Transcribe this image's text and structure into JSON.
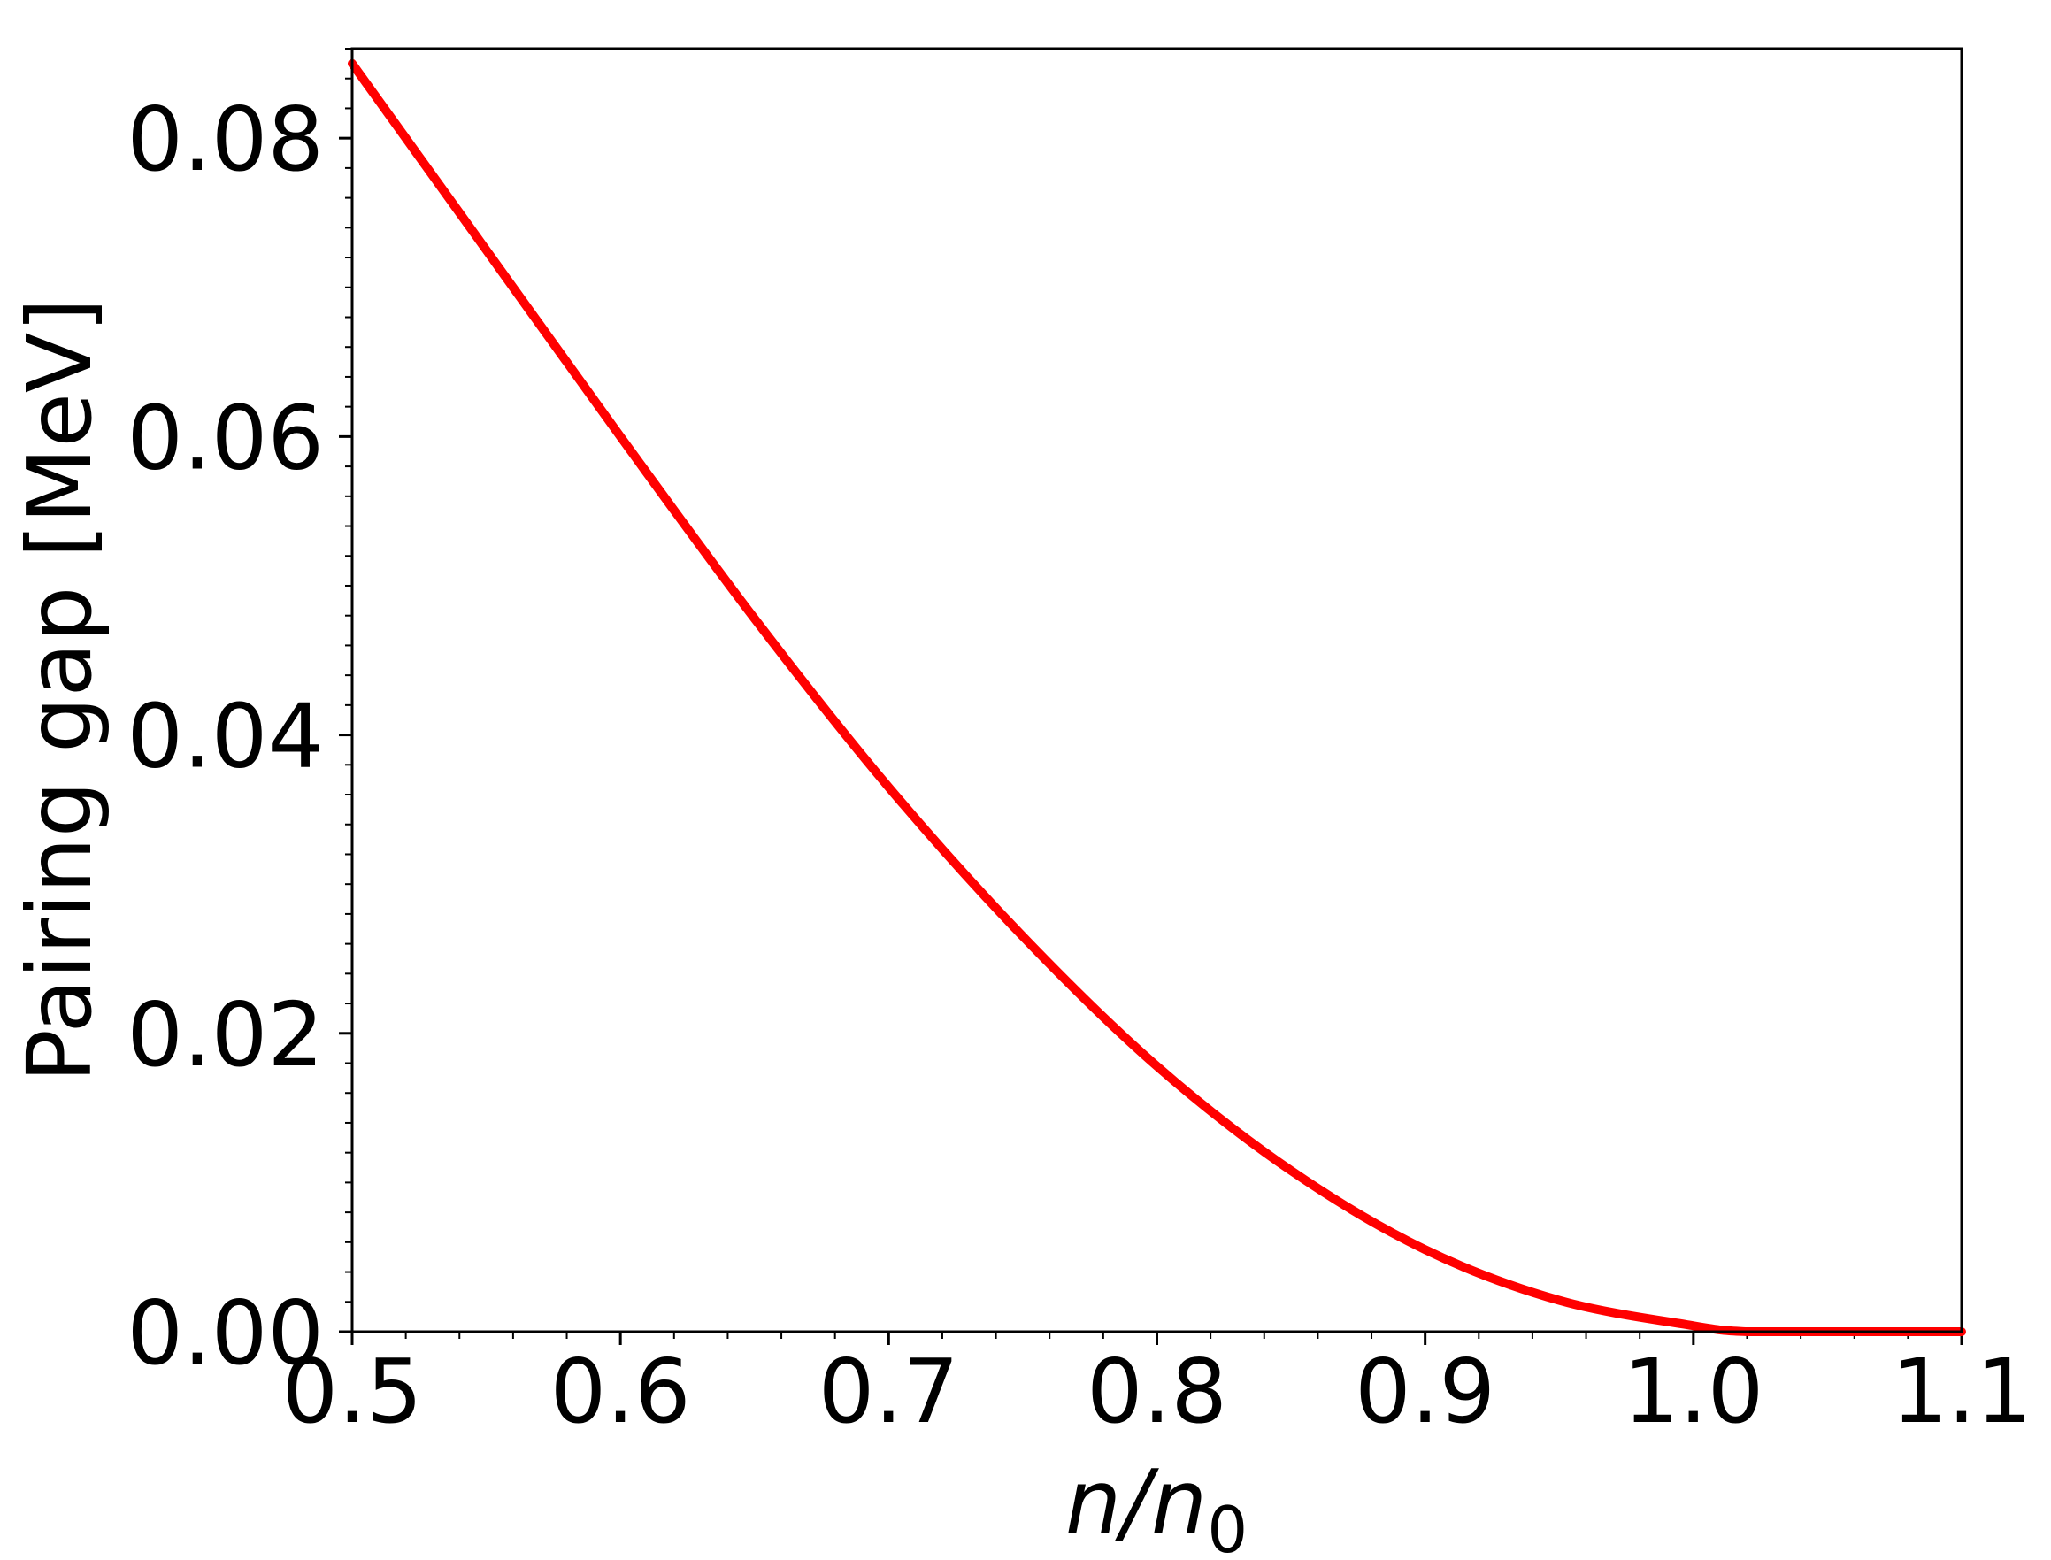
{
  "chart_data": {
    "type": "line",
    "title": "",
    "xlabel": {
      "main": "n/n",
      "sub": "0"
    },
    "ylabel": "Pairing gap [MeV]",
    "xlim": [
      0.5,
      1.1
    ],
    "ylim": [
      0.0,
      0.086
    ],
    "x_ticks": [
      0.5,
      0.6,
      0.7,
      0.8,
      0.9,
      1.0,
      1.1
    ],
    "x_tick_labels": [
      "0.5",
      "0.6",
      "0.7",
      "0.8",
      "0.9",
      "1.0",
      "1.1"
    ],
    "y_ticks": [
      0.0,
      0.02,
      0.04,
      0.06,
      0.08
    ],
    "y_tick_labels": [
      "0.00",
      "0.02",
      "0.04",
      "0.06",
      "0.08"
    ],
    "x_minor_step": 0.02,
    "y_minor_step": 0.002,
    "grid": false,
    "series": [
      {
        "color": "#ff0000",
        "x": [
          0.5,
          0.55,
          0.6,
          0.65,
          0.7,
          0.75,
          0.8,
          0.85,
          0.9,
          0.95,
          1.0,
          1.02,
          1.05,
          1.1
        ],
        "y": [
          0.085,
          0.0725,
          0.06,
          0.0478,
          0.0365,
          0.0265,
          0.0178,
          0.0108,
          0.0055,
          0.0021,
          0.0004,
          0.0,
          0.0,
          0.0
        ]
      }
    ]
  }
}
